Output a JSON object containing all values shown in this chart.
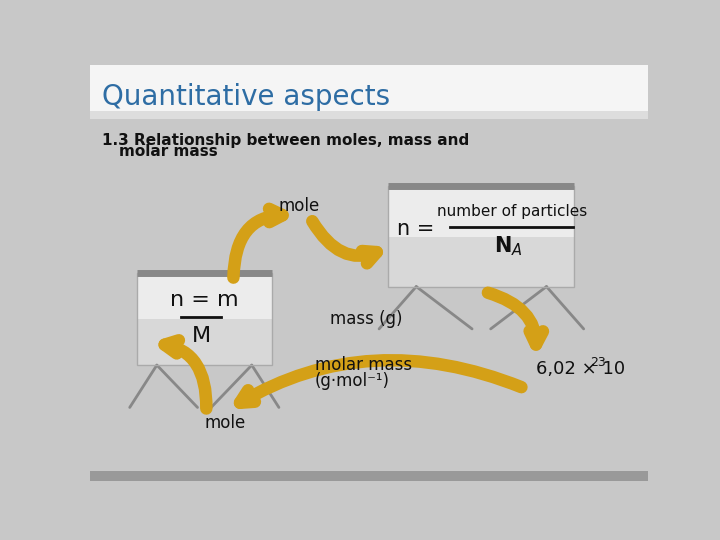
{
  "title": "Quantitative aspects",
  "subtitle_line1": "1.3 Relationship between moles, mass and",
  "subtitle_line2": "     molar mass",
  "title_color": "#2e6da4",
  "title_fontsize": 20,
  "subtitle_fontsize": 11,
  "bg_color": "#c8c8c8",
  "header_bg": "#f5f5f5",
  "arrow_color": "#d4a017",
  "arrow_color_dark": "#b08010",
  "text_color": "#111111",
  "board_face": "#e8e8e8",
  "board_face2": "#f5f5f5",
  "board_edge": "#aaaaaa",
  "leg_color": "#888888",
  "avogadro": "6,02 × 10",
  "avogadro_exp": "23",
  "label_mole_top": "mole",
  "label_mass": "mass (g)",
  "label_molar": "molar mass",
  "label_molar2": "(g·mol⁻¹)",
  "label_mole_bottom": "mole",
  "bottom_bar_color": "#999999"
}
